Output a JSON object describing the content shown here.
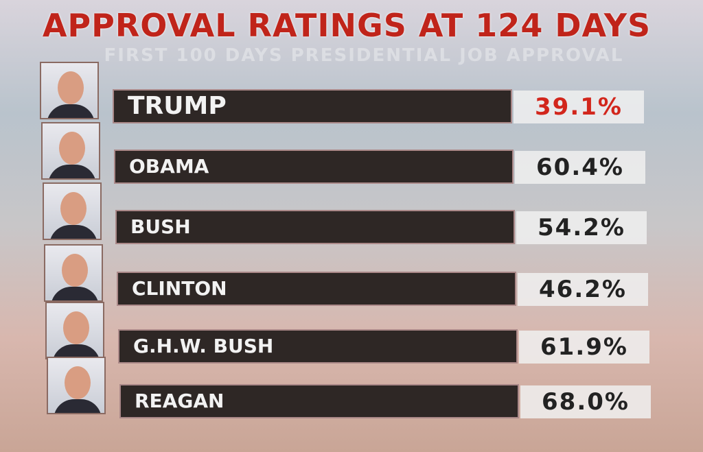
{
  "title": "APPROVAL RATINGS AT 124 DAYS",
  "subtitle": "FIRST 100 DAYS PRESIDENTIAL JOB APPROVAL",
  "rows": [
    {
      "name": "TRUMP",
      "value": "39.1%"
    },
    {
      "name": "OBAMA",
      "value": "60.4%"
    },
    {
      "name": "BUSH",
      "value": "54.2%"
    },
    {
      "name": "CLINTON",
      "value": "46.2%"
    },
    {
      "name": "G.H.W. BUSH",
      "value": "61.9%"
    },
    {
      "name": "REAGAN",
      "value": "68.0%"
    }
  ]
}
